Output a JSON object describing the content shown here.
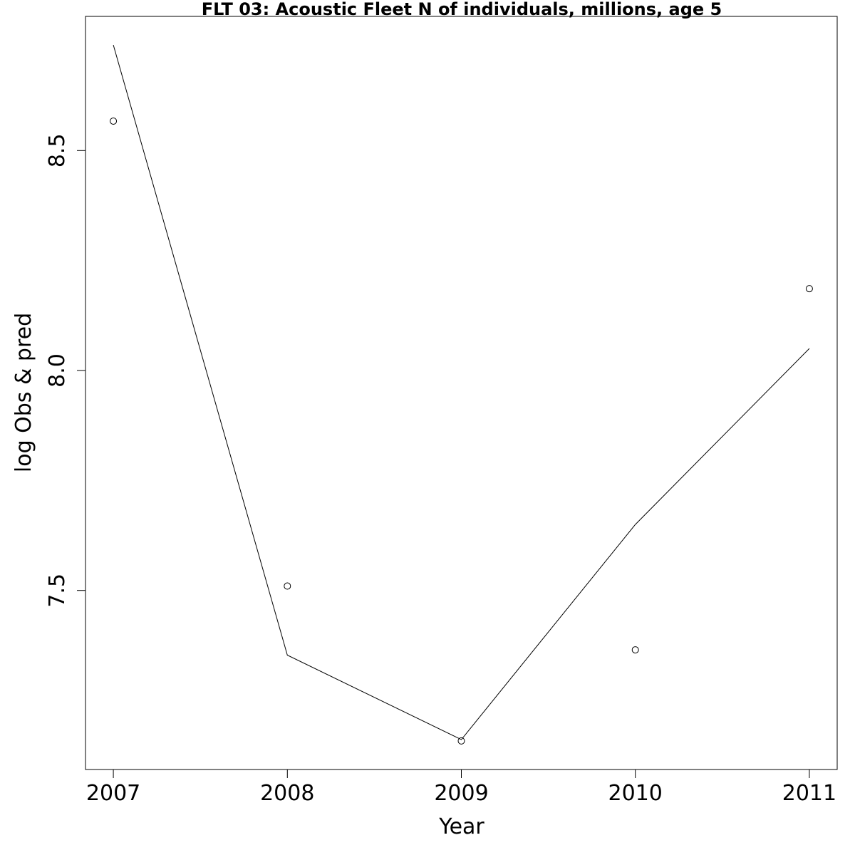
{
  "chart_data": {
    "type": "line",
    "title": "FLT 03: Acoustic Fleet  N of individuals, millions, age 5",
    "xlabel": "Year",
    "ylabel": "log Obs & pred",
    "x": [
      2007,
      2008,
      2009,
      2010,
      2011
    ],
    "series": [
      {
        "role": "observed",
        "style": "points",
        "values": [
          8.567,
          7.51,
          7.158,
          7.365,
          8.186
        ]
      },
      {
        "role": "predicted",
        "style": "line",
        "values": [
          8.74,
          7.353,
          7.161,
          7.65,
          8.05
        ]
      }
    ],
    "xticks": [
      "2007",
      "2008",
      "2009",
      "2010",
      "2011"
    ],
    "yticks": [
      "7.5",
      "8.0",
      "8.5"
    ],
    "xlim": [
      2006.84,
      2011.16
    ],
    "ylim": [
      7.093,
      8.805
    ],
    "grid": false,
    "legend": "none"
  }
}
